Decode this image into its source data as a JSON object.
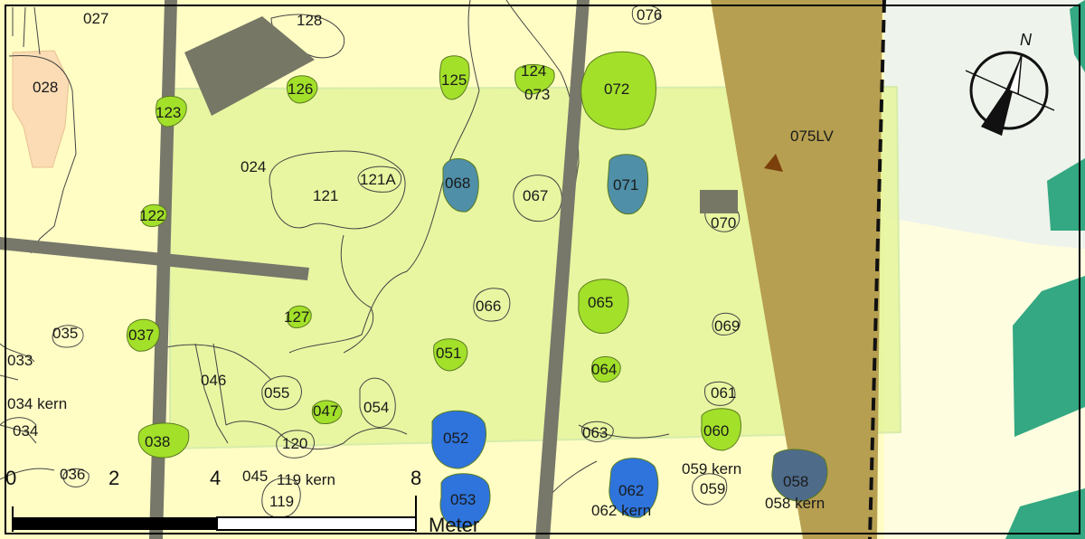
{
  "map": {
    "north_label": "N",
    "scale": {
      "ticks": [
        "0",
        "2",
        "4",
        "8"
      ],
      "unit": "Meter"
    },
    "feature_labels": {
      "f027": "027",
      "f128": "128",
      "f076": "076",
      "f028": "028",
      "f125": "125",
      "f124": "124",
      "f073": "073",
      "f072": "072",
      "f126": "126",
      "f123": "123",
      "f075lv": "075LV",
      "f024": "024",
      "f121": "121",
      "f121a": "121A",
      "f068": "068",
      "f067": "067",
      "f071": "071",
      "f070": "070",
      "f122": "122",
      "f066": "066",
      "f065": "065",
      "f127": "127",
      "f069": "069",
      "f035": "035",
      "f037": "037",
      "f033": "033",
      "f051": "051",
      "f064": "064",
      "f046": "046",
      "f055": "055",
      "f047": "047",
      "f054": "054",
      "f061": "061",
      "f034kern": "034 kern",
      "f034": "034",
      "f052": "052",
      "f063": "063",
      "f060": "060",
      "f038": "038",
      "f120": "120",
      "f059kern": "059 kern",
      "f058": "058",
      "f036": "036",
      "f045": "045",
      "f119kern": "119 kern",
      "f062": "062",
      "f059": "059",
      "f058kern": "058 kern",
      "f119": "119",
      "f053": "053",
      "f062kern": "062 kern"
    },
    "colors": {
      "background": "#fffdc4",
      "study_area": "#e4f59b",
      "tree_green": "#a3e02a",
      "tree_blue_grey": "#4f8fa8",
      "tree_blue": "#2e74dc",
      "tree_slate": "#4f6b8a",
      "path_grey": "#77776a",
      "building_grey": "#777766",
      "band_brown": "#b39a4c",
      "orange_patch": "#fbdcb4",
      "teal_block": "#33a882",
      "light_grey_area": "#eef3ec",
      "marker_brown": "#7a3f0a"
    }
  }
}
